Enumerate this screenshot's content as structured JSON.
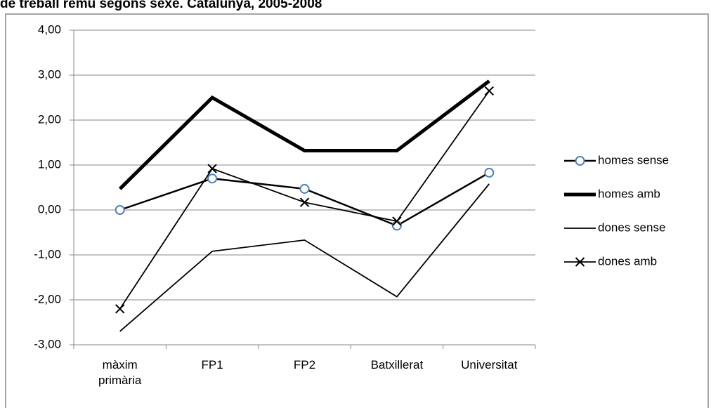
{
  "chart_data": {
    "type": "line",
    "title": "de treball remu segons sexe. Catalunya, 2005-2008",
    "categories": [
      "màxim primària",
      "FP1",
      "FP2",
      "Batxillerat",
      "Universitat"
    ],
    "series": [
      {
        "name": "homes sense",
        "color": "#000000",
        "line_width": 2.5,
        "marker": "circle",
        "values": [
          0.0,
          0.7,
          0.47,
          -0.35,
          0.83
        ]
      },
      {
        "name": "homes amb",
        "color": "#000000",
        "line_width": 5,
        "marker": "none",
        "values": [
          0.47,
          2.5,
          1.32,
          1.32,
          2.87
        ]
      },
      {
        "name": "dones sense",
        "color": "#000000",
        "line_width": 1.8,
        "marker": "none",
        "values": [
          -2.7,
          -0.92,
          -0.67,
          -1.93,
          0.58
        ]
      },
      {
        "name": "dones amb",
        "color": "#000000",
        "line_width": 1.8,
        "marker": "x",
        "values": [
          -2.2,
          0.92,
          0.17,
          -0.25,
          2.65
        ]
      }
    ],
    "ylim": [
      -3,
      4
    ],
    "yticks": [
      {
        "value": -3,
        "label": "-3,00"
      },
      {
        "value": -2,
        "label": "-2,00"
      },
      {
        "value": -1,
        "label": "-1,00"
      },
      {
        "value": 0,
        "label": "0,00"
      },
      {
        "value": 1,
        "label": "1,00"
      },
      {
        "value": 2,
        "label": "2,00"
      },
      {
        "value": 3,
        "label": "3,00"
      },
      {
        "value": 4,
        "label": "4,00"
      }
    ],
    "grid": true,
    "legend": "right"
  }
}
